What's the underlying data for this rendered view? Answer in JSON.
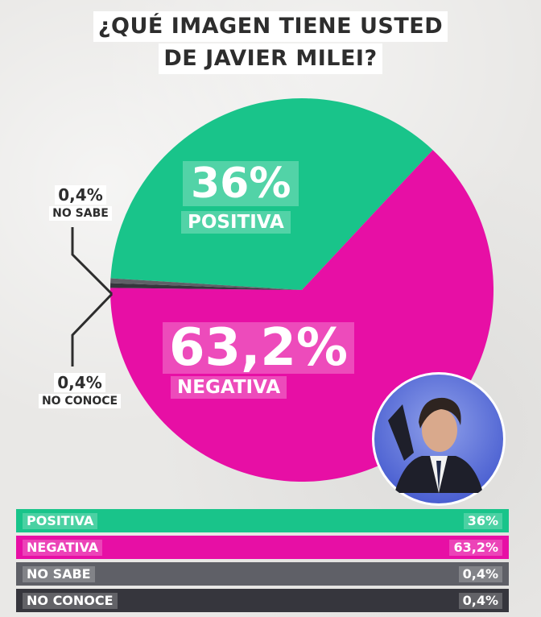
{
  "title_lines": [
    "¿QUÉ IMAGEN TIENE USTED",
    "DE JAVIER MILEI?"
  ],
  "colors": {
    "positiva": "#19c48a",
    "negativa": "#e70fa5",
    "no_sabe": "#5f6067",
    "no_conoce": "#36363d"
  },
  "icons": {
    "photo": "portrait-photo"
  },
  "chart_data": {
    "type": "pie",
    "title": "¿QUÉ IMAGEN TIENE USTED DE JAVIER MILEI?",
    "slices": [
      {
        "label": "POSITIVA",
        "value": 36,
        "value_text": "36%"
      },
      {
        "label": "NEGATIVA",
        "value": 63.2,
        "value_text": "63,2%"
      },
      {
        "label": "NO SABE",
        "value": 0.4,
        "value_text": "0,4%"
      },
      {
        "label": "NO CONOCE",
        "value": 0.4,
        "value_text": "0,4%"
      }
    ]
  }
}
